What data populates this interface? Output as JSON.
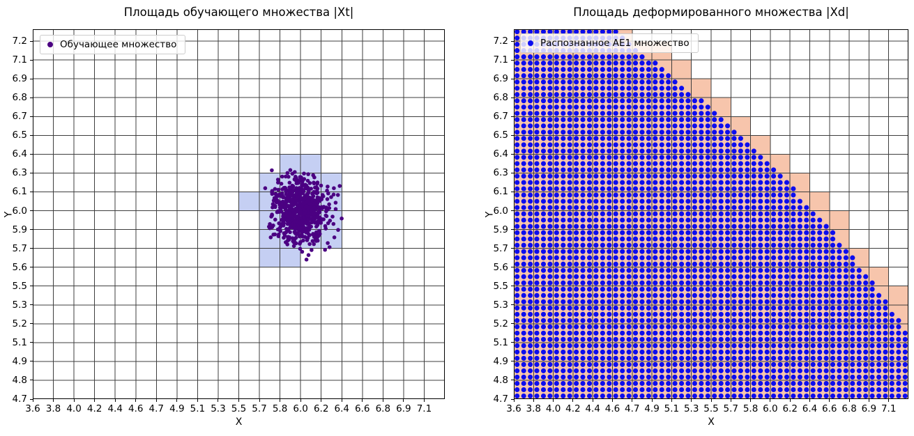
{
  "chart_data": [
    {
      "type": "scatter",
      "title": "Площадь обучающего множества |Xt|",
      "xlabel": "X",
      "ylabel": "Y",
      "x_tick_labels": [
        "3.6",
        "3.8",
        "4.0",
        "4.2",
        "4.4",
        "4.6",
        "4.7",
        "4.9",
        "5.1",
        "5.3",
        "5.5",
        "5.7",
        "5.8",
        "6.0",
        "6.2",
        "6.4",
        "6.6",
        "6.8",
        "6.9",
        "7.1"
      ],
      "y_tick_labels": [
        "4.7",
        "4.8",
        "4.9",
        "5.1",
        "5.2",
        "5.3",
        "5.5",
        "5.6",
        "5.7",
        "5.9",
        "6.0",
        "6.1",
        "6.3",
        "6.4",
        "6.5",
        "6.7",
        "6.8",
        "6.9",
        "7.1",
        "7.2"
      ],
      "grid": true,
      "legend_position": "upper left",
      "legend": [
        {
          "label": "Обучающее множество",
          "marker": "dot",
          "color": "#4B0082"
        }
      ],
      "series": [
        {
          "name": "Обучающее множество",
          "kind": "gaussian-cluster",
          "center": [
            6.0,
            6.0
          ],
          "center_tick_index": [
            13,
            10
          ],
          "sigma_in_grid_cells": [
            0.66,
            0.9
          ],
          "n_points": 700,
          "marker_color": "#4B0082",
          "marker_radius_px": 2.8,
          "seed": 7
        }
      ],
      "shaded_cells": {
        "color": "#C5CFF3",
        "note": "cells given as [x_tick_index, y_tick_index] of the cell's lower-left gridline crossing; tick index refers to x_tick_labels / y_tick_labels",
        "cells": [
          [
            12,
            12
          ],
          [
            13,
            12
          ],
          [
            11,
            11
          ],
          [
            12,
            11
          ],
          [
            13,
            11
          ],
          [
            14,
            11
          ],
          [
            10,
            10
          ],
          [
            11,
            10
          ],
          [
            12,
            10
          ],
          [
            13,
            10
          ],
          [
            14,
            10
          ],
          [
            11,
            9
          ],
          [
            12,
            9
          ],
          [
            13,
            9
          ],
          [
            14,
            9
          ],
          [
            11,
            8
          ],
          [
            12,
            8
          ],
          [
            13,
            8
          ],
          [
            14,
            8
          ],
          [
            11,
            7
          ],
          [
            12,
            7
          ]
        ]
      }
    },
    {
      "type": "scatter",
      "title": "Площадь деформированного множества |Xd|",
      "xlabel": "X",
      "ylabel": "Y",
      "x_tick_labels": [
        "3.6",
        "3.8",
        "4.0",
        "4.2",
        "4.4",
        "4.6",
        "4.7",
        "4.9",
        "5.1",
        "5.3",
        "5.5",
        "5.7",
        "5.8",
        "6.0",
        "6.2",
        "6.4",
        "6.6",
        "6.8",
        "6.9",
        "7.1"
      ],
      "y_tick_labels": [
        "4.7",
        "4.8",
        "4.9",
        "5.1",
        "5.2",
        "5.3",
        "5.5",
        "5.6",
        "5.7",
        "5.9",
        "6.0",
        "6.1",
        "6.3",
        "6.4",
        "6.5",
        "6.7",
        "6.8",
        "6.9",
        "7.1",
        "7.2"
      ],
      "grid": true,
      "legend_position": "upper left",
      "legend": [
        {
          "label": "Распознанное АЕ1 множество",
          "marker": "dot",
          "color": "#0D0DEE"
        }
      ],
      "series": [
        {
          "name": "Распознанное АЕ1 множество",
          "kind": "uniform-dot-grid-region",
          "description": "dense grid of blue dots (3 per grid cell per axis) filling the whole plot area left of a diagonal boundary running from the top edge (~x 5.1) down to the right edge (~y 5.2)",
          "dots_per_grid_cell": 3,
          "marker_color": "#0D0DEE",
          "marker_radius_px": 3.55,
          "boundary_anchor_fractions": [
            [
              0.2527,
              0.0
            ],
            [
              0.6767,
              0.3917
            ],
            [
              1.0,
              0.8249
            ]
          ]
        }
      ],
      "region_fill": {
        "color": "#F7C5AC",
        "note": "every grid cell intersected by the recognized region is shaded salmon; it shows through between the dots and as bare staircase cells along the boundary"
      }
    }
  ]
}
